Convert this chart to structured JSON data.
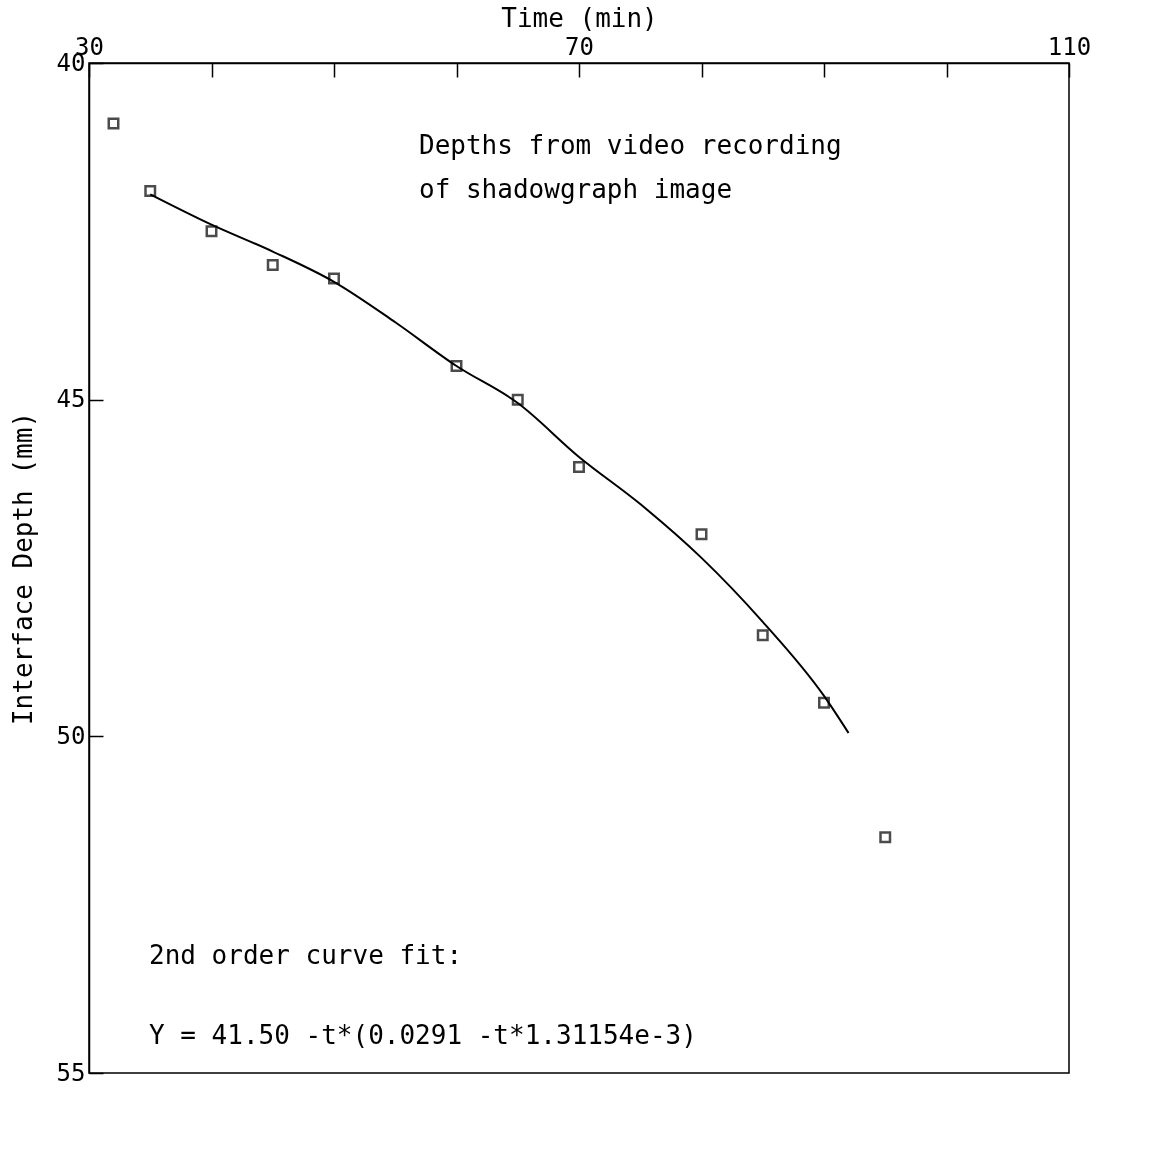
{
  "chart_data": {
    "type": "scatter",
    "xlabel": "Time (min)",
    "ylabel": "Interface Depth (mm)",
    "xlim": [
      30,
      110
    ],
    "xticks": [
      30,
      {
        "value": 40,
        "label": null
      },
      {
        "value": 50,
        "label": null
      },
      {
        "value": 60,
        "label": null
      },
      70,
      {
        "value": 80,
        "label": null
      },
      {
        "value": 90,
        "label": null
      },
      {
        "value": 100,
        "label": null
      },
      110
    ],
    "ylim": [
      55,
      40
    ],
    "yticks": [
      40,
      45,
      50,
      55
    ],
    "grid": false,
    "legend": false,
    "series": [
      {
        "marker": "square",
        "color": "#000000",
        "x": [
          32,
          35,
          40,
          45,
          50,
          60,
          65,
          70,
          80,
          85,
          90,
          95
        ],
        "values": [
          40.9,
          41.9,
          42.5,
          43.0,
          43.2,
          44.5,
          45.0,
          46.0,
          47.0,
          48.5,
          49.5,
          51.5
        ]
      },
      {
        "type": "line",
        "marker": "none",
        "color": "#000000",
        "x": [
          35,
          40,
          45,
          50,
          55,
          60,
          65,
          70,
          75,
          80,
          85,
          90,
          92
        ],
        "values": [
          41.95,
          42.4,
          42.8,
          43.25,
          43.85,
          44.5,
          45.05,
          45.85,
          46.55,
          47.35,
          48.3,
          49.4,
          49.95
        ]
      }
    ],
    "annotations": [
      "Depths from video recording\nof shadowgraph image",
      "2nd order curve fit:",
      "Y = 41.50 -t*(0.0291 -t*1.31154e-3)"
    ]
  }
}
